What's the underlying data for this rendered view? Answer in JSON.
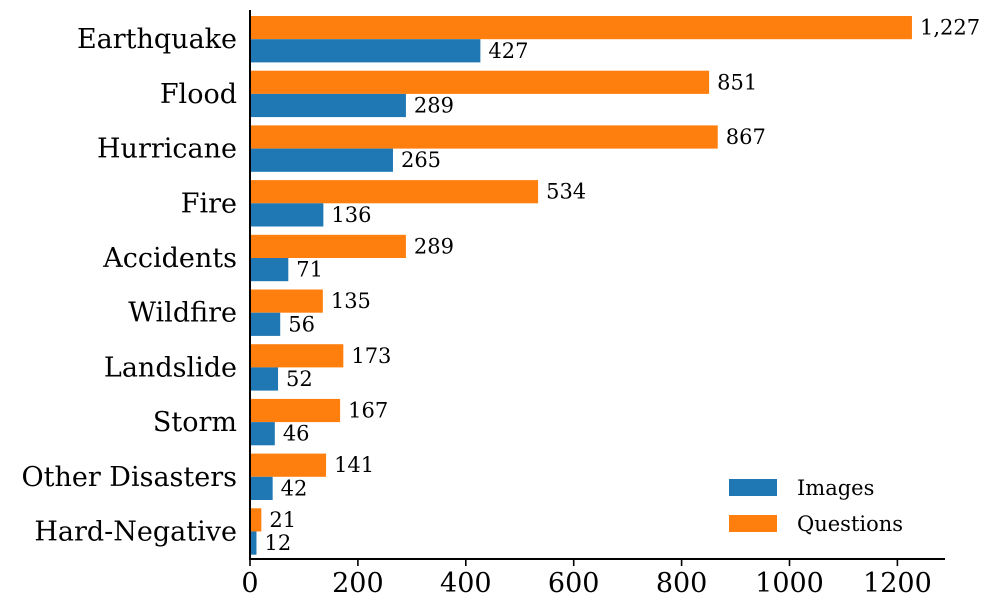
{
  "chart_data": {
    "type": "bar",
    "orientation": "horizontal",
    "categories": [
      "Earthquake",
      "Flood",
      "Hurricane",
      "Fire",
      "Accidents",
      "Wildfire",
      "Landslide",
      "Storm",
      "Other Disasters",
      "Hard-Negative"
    ],
    "series": [
      {
        "name": "Images",
        "color": "#1f77b4",
        "values": [
          427,
          289,
          265,
          136,
          71,
          56,
          52,
          46,
          42,
          12
        ],
        "labels": [
          "427",
          "289",
          "265",
          "136",
          "71",
          "56",
          "52",
          "46",
          "42",
          "12"
        ]
      },
      {
        "name": "Questions",
        "color": "#ff7f0e",
        "values": [
          1227,
          851,
          867,
          534,
          289,
          135,
          173,
          167,
          141,
          21
        ],
        "labels": [
          "1,227",
          "851",
          "867",
          "534",
          "289",
          "135",
          "173",
          "167",
          "141",
          "21"
        ]
      }
    ],
    "xlim": [
      0,
      1285
    ],
    "xticks": [
      0,
      200,
      400,
      600,
      800,
      1000,
      1200
    ],
    "xtick_labels": [
      "0",
      "200",
      "400",
      "600",
      "800",
      "1000",
      "1200"
    ],
    "title": "",
    "xlabel": "",
    "ylabel": "",
    "grid": false,
    "legend_position": "bottom-right"
  }
}
